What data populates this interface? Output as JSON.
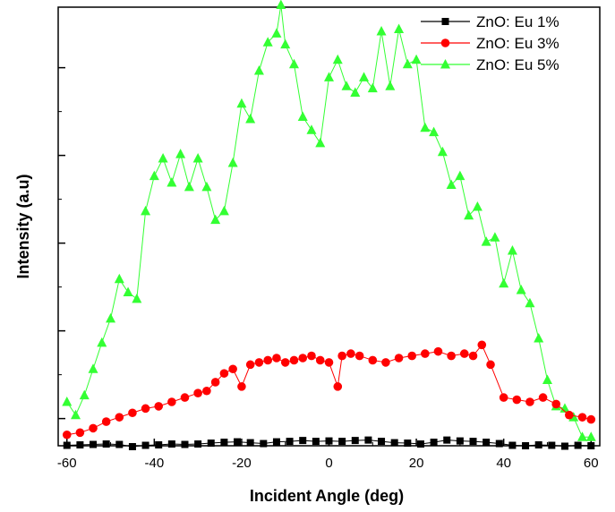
{
  "chart_data": {
    "type": "line",
    "title": "",
    "xlabel": "Incident Angle (deg)",
    "ylabel": "Intensity (a.u)",
    "xlim": [
      -62,
      62
    ],
    "ylim": [
      0,
      100
    ],
    "xticks": [
      -60,
      -40,
      -20,
      0,
      20,
      40,
      60
    ],
    "xtick_labels": [
      "-60",
      "-40",
      "-20",
      "0",
      "20",
      "40",
      "60"
    ],
    "yticks_unlabeled": [
      6.2,
      26.2,
      46.2,
      66.2,
      86.2
    ],
    "legend_position": "top-right",
    "grid": false,
    "series": [
      {
        "name": "ZnO: Eu 1%",
        "color": "#000000",
        "marker": "square",
        "x": [
          -60,
          -57,
          -54,
          -51,
          -48,
          -45,
          -42,
          -39,
          -36,
          -33,
          -30,
          -27,
          -24,
          -21,
          -18,
          -15,
          -12,
          -9,
          -6,
          -3,
          0,
          3,
          6,
          9,
          12,
          15,
          18,
          21,
          24,
          27,
          30,
          33,
          36,
          39,
          42,
          45,
          48,
          51,
          54,
          57,
          60
        ],
        "y": [
          0.1,
          0.2,
          0.3,
          0.4,
          0.3,
          -0.2,
          0.1,
          0.2,
          0.4,
          0.3,
          0.4,
          0.6,
          0.8,
          0.9,
          0.7,
          0.5,
          0.9,
          1.0,
          1.2,
          1.0,
          1.1,
          1.0,
          1.2,
          1.3,
          1.0,
          0.7,
          0.6,
          0.4,
          0.8,
          1.3,
          1.1,
          1.0,
          0.8,
          0.5,
          0.1,
          0.0,
          0.2,
          0.1,
          -0.1,
          0.1,
          0.0
        ]
      },
      {
        "name": "ZnO: Eu 3%",
        "color": "#ff0000",
        "marker": "circle",
        "x": [
          -60,
          -57,
          -54,
          -51,
          -48,
          -45,
          -42,
          -39,
          -36,
          -33,
          -30,
          -28,
          -26,
          -24,
          -22,
          -20,
          -18,
          -16,
          -14,
          -12,
          -10,
          -8,
          -6,
          -4,
          -2,
          0,
          2,
          3,
          5,
          7,
          10,
          13,
          16,
          19,
          22,
          25,
          28,
          31,
          33,
          35,
          37,
          40,
          43,
          46,
          49,
          52,
          55,
          58,
          60
        ],
        "y": [
          2.5,
          3.0,
          4.0,
          5.5,
          6.5,
          7.5,
          8.5,
          9.0,
          10.0,
          11.0,
          12.0,
          12.5,
          14.5,
          16.5,
          17.5,
          13.5,
          18.5,
          19.0,
          19.5,
          20.0,
          19.0,
          19.5,
          20.0,
          20.5,
          19.5,
          19.0,
          13.5,
          20.5,
          21.0,
          20.5,
          19.5,
          19.0,
          20.0,
          20.5,
          21.0,
          21.5,
          20.5,
          21.0,
          20.5,
          23.0,
          18.5,
          11.0,
          10.5,
          10.0,
          11.0,
          9.5,
          7.0,
          6.5,
          6.0
        ]
      },
      {
        "name": "ZnO: Eu 5%",
        "color": "#33ff33",
        "marker": "triangle",
        "x": [
          -60,
          -58,
          -56,
          -54,
          -52,
          -50,
          -48,
          -46,
          -44,
          -42,
          -40,
          -38,
          -36,
          -34,
          -32,
          -30,
          -28,
          -26,
          -24,
          -22,
          -20,
          -18,
          -16,
          -14,
          -12,
          -11,
          -10,
          -8,
          -6,
          -4,
          -2,
          0,
          2,
          4,
          6,
          8,
          10,
          12,
          14,
          16,
          18,
          20,
          22,
          24,
          26,
          28,
          30,
          32,
          34,
          36,
          38,
          40,
          42,
          44,
          46,
          48,
          50,
          52,
          54,
          56,
          58,
          60
        ],
        "y": [
          10.0,
          7.0,
          11.5,
          17.5,
          23.5,
          29.0,
          38.0,
          35.0,
          33.5,
          53.5,
          61.5,
          65.5,
          60.0,
          66.5,
          59.0,
          65.5,
          59.0,
          51.5,
          53.5,
          64.5,
          78.0,
          74.5,
          85.5,
          92.0,
          94.0,
          100.5,
          91.5,
          87.0,
          75.0,
          72.0,
          69.0,
          84.0,
          88.0,
          82.0,
          80.5,
          84.0,
          81.5,
          94.5,
          82.0,
          95.0,
          87.0,
          88.0,
          72.5,
          71.5,
          67.0,
          59.5,
          61.5,
          52.5,
          54.5,
          46.5,
          47.5,
          37.0,
          44.5,
          35.5,
          32.5,
          24.5,
          15.0,
          9.0,
          8.5,
          6.5,
          2.0,
          2.0
        ]
      }
    ]
  }
}
